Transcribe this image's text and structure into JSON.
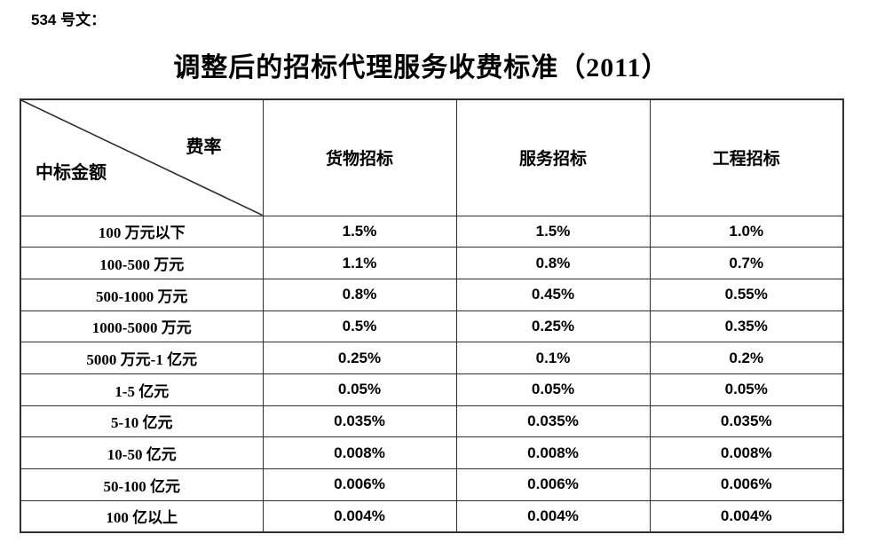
{
  "doc": {
    "label": "534 号文：",
    "title": "调整后的招标代理服务收费标准（2011）"
  },
  "table": {
    "corner": {
      "top_right": "费率",
      "bottom_left": "中标金额"
    },
    "columns": [
      "货物招标",
      "服务招标",
      "工程招标"
    ],
    "rows": [
      {
        "range": "100 万元以下",
        "values": [
          "1.5%",
          "1.5%",
          "1.0%"
        ]
      },
      {
        "range": "100-500 万元",
        "values": [
          "1.1%",
          "0.8%",
          "0.7%"
        ]
      },
      {
        "range": "500-1000 万元",
        "values": [
          "0.8%",
          "0.45%",
          "0.55%"
        ]
      },
      {
        "range": "1000-5000 万元",
        "values": [
          "0.5%",
          "0.25%",
          "0.35%"
        ]
      },
      {
        "range": "5000 万元-1 亿元",
        "values": [
          "0.25%",
          "0.1%",
          "0.2%"
        ]
      },
      {
        "range": "1-5 亿元",
        "values": [
          "0.05%",
          "0.05%",
          "0.05%"
        ]
      },
      {
        "range": "5-10 亿元",
        "values": [
          "0.035%",
          "0.035%",
          "0.035%"
        ]
      },
      {
        "range": "10-50 亿元",
        "values": [
          "0.008%",
          "0.008%",
          "0.008%"
        ]
      },
      {
        "range": "50-100 亿元",
        "values": [
          "0.006%",
          "0.006%",
          "0.006%"
        ]
      },
      {
        "range": "100 亿以上",
        "values": [
          "0.004%",
          "0.004%",
          "0.004%"
        ]
      }
    ],
    "border_color": "#2f2f2f"
  }
}
